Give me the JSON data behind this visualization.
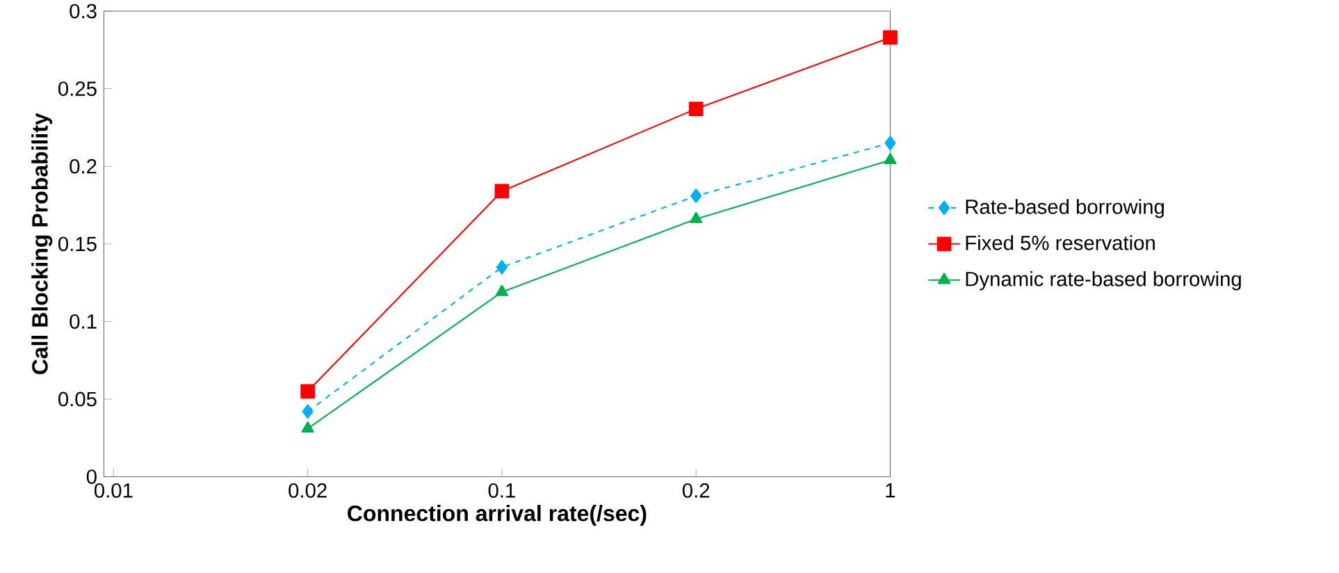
{
  "chart_data": {
    "type": "line",
    "xlabel": "Connection arrival rate(/sec)",
    "ylabel": "Call Blocking Probability",
    "categories": [
      "0.01",
      "0.02",
      "0.1",
      "0.2",
      "1"
    ],
    "series": [
      {
        "name": "Rate-based borrowing",
        "color": "#00b0f0",
        "marker": "diamond",
        "line_style": "dashed",
        "values": [
          null,
          0.042,
          0.135,
          0.181,
          0.215
        ]
      },
      {
        "name": "Fixed 5% reservation",
        "color": "#ff0000",
        "marker": "square",
        "line_style": "solid",
        "values": [
          null,
          0.055,
          0.184,
          0.237,
          0.283
        ]
      },
      {
        "name": "Dynamic rate-based borrowing",
        "color": "#00b050",
        "marker": "triangle",
        "line_style": "solid",
        "values": [
          null,
          0.031,
          0.119,
          0.166,
          0.204
        ]
      }
    ],
    "ylim": [
      0,
      0.3
    ],
    "yticks": [
      0,
      0.05,
      0.1,
      0.15,
      0.2,
      0.25,
      0.3
    ],
    "grid": false,
    "legend": "right"
  }
}
